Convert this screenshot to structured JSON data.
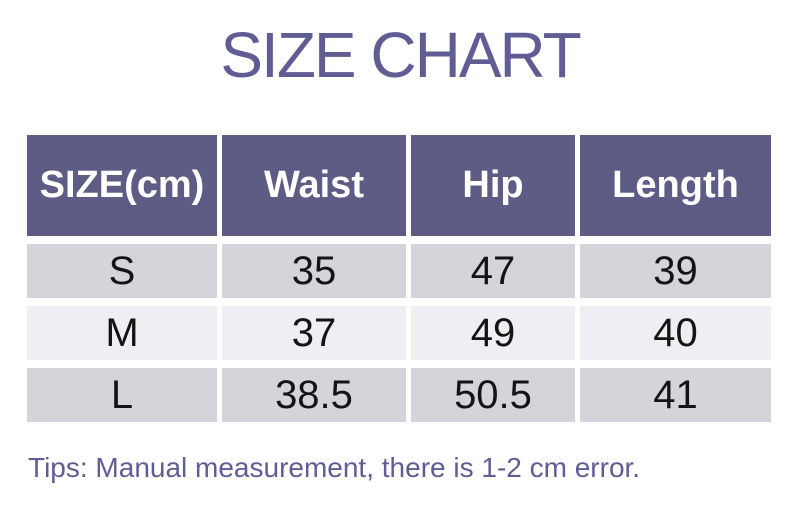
{
  "page": {
    "title": "SIZE CHART",
    "note": "Tips: Manual measurement, there is 1-2 cm error."
  },
  "chart_data": {
    "type": "table",
    "title": "SIZE CHART",
    "units": "cm",
    "columns": [
      "SIZE(cm)",
      "Waist",
      "Hip",
      "Length"
    ],
    "rows": [
      [
        "S",
        35,
        47,
        39
      ],
      [
        "M",
        37,
        49,
        40
      ],
      [
        "L",
        38.5,
        50.5,
        41
      ]
    ],
    "note": "Tips: Manual measurement, there is 1-2 cm error."
  },
  "colors": {
    "title_color": "#5f5d94",
    "header_bg": "#5e5c85",
    "header_text": "#ffffff",
    "row_dark_bg": "#d5d4db",
    "row_light_bg": "#efeef2",
    "cell_text": "#141414",
    "tip_color": "#5f5d94",
    "page_bg": "#ffffff"
  }
}
